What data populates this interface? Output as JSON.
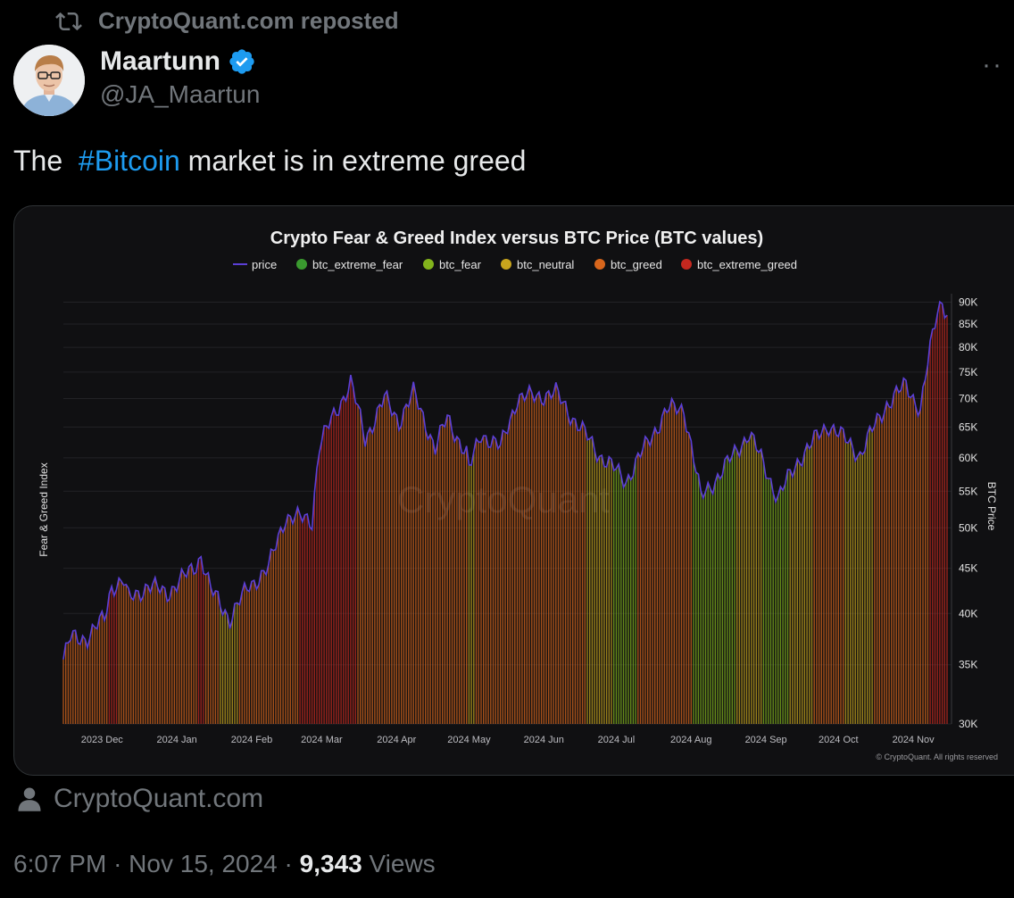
{
  "repost": {
    "text": "CryptoQuant.com reposted"
  },
  "author": {
    "name": "Maartunn",
    "handle": "@JA_Maartun"
  },
  "tweet": {
    "prefix": "The  ",
    "hashtag": "#Bitcoin",
    "suffix": " market is in extreme greed"
  },
  "chart_data": {
    "type": "bar",
    "title": "Crypto Fear & Greed Index versus BTC Price (BTC values)",
    "ylabel_left": "Fear & Greed Index",
    "ylabel_right": "BTC Price",
    "legend": [
      {
        "name": "price",
        "marker": "line",
        "color": "#5b3fd6"
      },
      {
        "name": "btc_extreme_fear",
        "marker": "dot",
        "color": "#3a9a2f"
      },
      {
        "name": "btc_fear",
        "marker": "dot",
        "color": "#82b31c"
      },
      {
        "name": "btc_neutral",
        "marker": "dot",
        "color": "#c8a51d"
      },
      {
        "name": "btc_greed",
        "marker": "dot",
        "color": "#d8661c"
      },
      {
        "name": "btc_extreme_greed",
        "marker": "dot",
        "color": "#c4281f"
      }
    ],
    "y_scale": "log",
    "y_range": [
      30000,
      92000
    ],
    "y_ticks": [
      {
        "value": 30000,
        "label": "30K"
      },
      {
        "value": 35000,
        "label": "35K"
      },
      {
        "value": 40000,
        "label": "40K"
      },
      {
        "value": 45000,
        "label": "45K"
      },
      {
        "value": 50000,
        "label": "50K"
      },
      {
        "value": 55000,
        "label": "55K"
      },
      {
        "value": 60000,
        "label": "60K"
      },
      {
        "value": 65000,
        "label": "65K"
      },
      {
        "value": 70000,
        "label": "70K"
      },
      {
        "value": 75000,
        "label": "75K"
      },
      {
        "value": 80000,
        "label": "80K"
      },
      {
        "value": 85000,
        "label": "85K"
      },
      {
        "value": 90000,
        "label": "90K"
      }
    ],
    "x_range": [
      "2023-11-15",
      "2024-11-15"
    ],
    "x_ticks": [
      {
        "date": "2023-12-01",
        "label": "2023 Dec"
      },
      {
        "date": "2024-01-01",
        "label": "2024 Jan"
      },
      {
        "date": "2024-02-01",
        "label": "2024 Feb"
      },
      {
        "date": "2024-03-01",
        "label": "2024 Mar"
      },
      {
        "date": "2024-04-01",
        "label": "2024 Apr"
      },
      {
        "date": "2024-05-01",
        "label": "2024 May"
      },
      {
        "date": "2024-06-01",
        "label": "2024 Jun"
      },
      {
        "date": "2024-07-01",
        "label": "2024 Jul"
      },
      {
        "date": "2024-08-01",
        "label": "2024 Aug"
      },
      {
        "date": "2024-09-01",
        "label": "2024 Sep"
      },
      {
        "date": "2024-10-01",
        "label": "2024 Oct"
      },
      {
        "date": "2024-11-01",
        "label": "2024 Nov"
      }
    ],
    "price_points": [
      {
        "date": "2023-11-15",
        "price": 35500,
        "sentiment": "btc_greed"
      },
      {
        "date": "2023-11-18",
        "price": 37500,
        "sentiment": "btc_greed"
      },
      {
        "date": "2023-11-25",
        "price": 37600,
        "sentiment": "btc_greed"
      },
      {
        "date": "2023-12-02",
        "price": 39500,
        "sentiment": "btc_greed"
      },
      {
        "date": "2023-12-05",
        "price": 43000,
        "sentiment": "btc_extreme_greed"
      },
      {
        "date": "2023-12-10",
        "price": 43500,
        "sentiment": "btc_greed"
      },
      {
        "date": "2023-12-12",
        "price": 41500,
        "sentiment": "btc_greed"
      },
      {
        "date": "2023-12-20",
        "price": 43000,
        "sentiment": "btc_greed"
      },
      {
        "date": "2023-12-28",
        "price": 42200,
        "sentiment": "btc_greed"
      },
      {
        "date": "2024-01-08",
        "price": 45000,
        "sentiment": "btc_greed"
      },
      {
        "date": "2024-01-11",
        "price": 46500,
        "sentiment": "btc_extreme_greed"
      },
      {
        "date": "2024-01-15",
        "price": 42500,
        "sentiment": "btc_greed"
      },
      {
        "date": "2024-01-23",
        "price": 39500,
        "sentiment": "btc_neutral"
      },
      {
        "date": "2024-01-31",
        "price": 43000,
        "sentiment": "btc_greed"
      },
      {
        "date": "2024-02-08",
        "price": 45000,
        "sentiment": "btc_greed"
      },
      {
        "date": "2024-02-15",
        "price": 51500,
        "sentiment": "btc_greed"
      },
      {
        "date": "2024-02-26",
        "price": 51000,
        "sentiment": "btc_extreme_greed"
      },
      {
        "date": "2024-02-29",
        "price": 62000,
        "sentiment": "btc_extreme_greed"
      },
      {
        "date": "2024-03-05",
        "price": 66000,
        "sentiment": "btc_extreme_greed"
      },
      {
        "date": "2024-03-13",
        "price": 73000,
        "sentiment": "btc_extreme_greed"
      },
      {
        "date": "2024-03-19",
        "price": 63000,
        "sentiment": "btc_greed"
      },
      {
        "date": "2024-03-27",
        "price": 70000,
        "sentiment": "btc_greed"
      },
      {
        "date": "2024-04-02",
        "price": 66000,
        "sentiment": "btc_greed"
      },
      {
        "date": "2024-04-08",
        "price": 71000,
        "sentiment": "btc_greed"
      },
      {
        "date": "2024-04-17",
        "price": 61500,
        "sentiment": "btc_greed"
      },
      {
        "date": "2024-04-22",
        "price": 66500,
        "sentiment": "btc_greed"
      },
      {
        "date": "2024-04-30",
        "price": 60500,
        "sentiment": "btc_greed"
      },
      {
        "date": "2024-05-01",
        "price": 58000,
        "sentiment": "btc_neutral"
      },
      {
        "date": "2024-05-06",
        "price": 64000,
        "sentiment": "btc_greed"
      },
      {
        "date": "2024-05-14",
        "price": 61500,
        "sentiment": "btc_greed"
      },
      {
        "date": "2024-05-21",
        "price": 70000,
        "sentiment": "btc_greed"
      },
      {
        "date": "2024-06-06",
        "price": 71000,
        "sentiment": "btc_greed"
      },
      {
        "date": "2024-06-14",
        "price": 66000,
        "sentiment": "btc_greed"
      },
      {
        "date": "2024-06-24",
        "price": 60500,
        "sentiment": "btc_neutral"
      },
      {
        "date": "2024-07-05",
        "price": 56500,
        "sentiment": "btc_fear"
      },
      {
        "date": "2024-07-15",
        "price": 63000,
        "sentiment": "btc_greed"
      },
      {
        "date": "2024-07-22",
        "price": 68000,
        "sentiment": "btc_greed"
      },
      {
        "date": "2024-07-29",
        "price": 68200,
        "sentiment": "btc_greed"
      },
      {
        "date": "2024-08-05",
        "price": 54000,
        "sentiment": "btc_fear"
      },
      {
        "date": "2024-08-15",
        "price": 58500,
        "sentiment": "btc_fear"
      },
      {
        "date": "2024-08-25",
        "price": 64000,
        "sentiment": "btc_neutral"
      },
      {
        "date": "2024-09-06",
        "price": 54000,
        "sentiment": "btc_fear"
      },
      {
        "date": "2024-09-15",
        "price": 60000,
        "sentiment": "btc_neutral"
      },
      {
        "date": "2024-09-27",
        "price": 65500,
        "sentiment": "btc_greed"
      },
      {
        "date": "2024-10-10",
        "price": 60500,
        "sentiment": "btc_neutral"
      },
      {
        "date": "2024-10-21",
        "price": 69000,
        "sentiment": "btc_greed"
      },
      {
        "date": "2024-10-29",
        "price": 72500,
        "sentiment": "btc_greed"
      },
      {
        "date": "2024-11-04",
        "price": 68000,
        "sentiment": "btc_greed"
      },
      {
        "date": "2024-11-11",
        "price": 88000,
        "sentiment": "btc_extreme_greed"
      },
      {
        "date": "2024-11-13",
        "price": 90500,
        "sentiment": "btc_extreme_greed"
      },
      {
        "date": "2024-11-15",
        "price": 87500,
        "sentiment": "btc_extreme_greed"
      }
    ],
    "watermark": "CryptoQuant",
    "copyright": "© CryptoQuant. All rights reserved"
  },
  "source": {
    "label": "CryptoQuant.com"
  },
  "meta": {
    "time": "6:07 PM",
    "date": "Nov 15, 2024",
    "views_count": "9,343",
    "views_label": "Views",
    "separator": "·"
  },
  "colors": {
    "accent": "#1d9bf0",
    "background": "#000000",
    "muted": "#71767b"
  }
}
